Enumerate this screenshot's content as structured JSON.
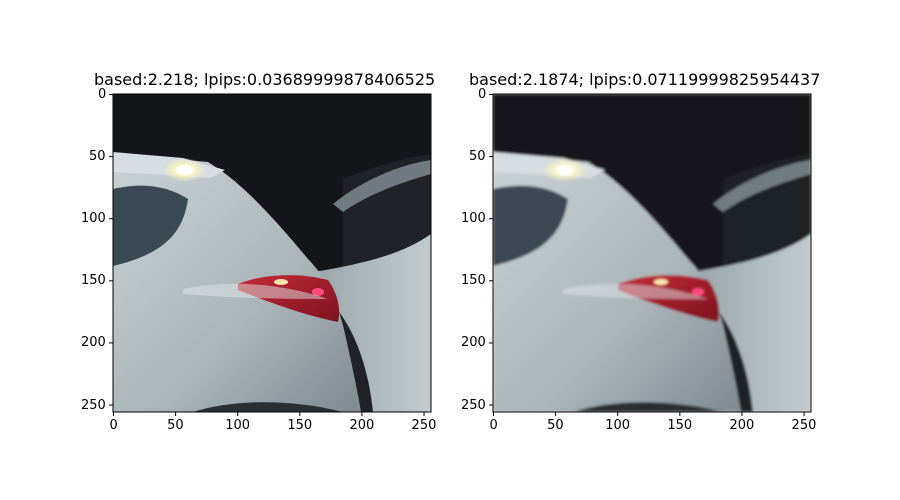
{
  "panels": [
    {
      "title": "based:2.218; lpips:0.03689999878406525",
      "xticks": [
        "0",
        "50",
        "100",
        "150",
        "200",
        "250"
      ],
      "yticks": [
        "0",
        "50",
        "100",
        "150",
        "200",
        "250"
      ]
    },
    {
      "title": "based:2.1874; lpips:0.07119999825954437",
      "xticks": [
        "0",
        "50",
        "100",
        "150",
        "200",
        "250"
      ],
      "yticks": [
        "0",
        "50",
        "100",
        "150",
        "200",
        "250"
      ]
    }
  ],
  "image": {
    "subject": "white car rear with red tail light at night",
    "colors": {
      "background": "#16171a",
      "car_body": "#aeb8bd",
      "tail_light": "#a3202c",
      "highlight": "#fff7c8"
    }
  }
}
